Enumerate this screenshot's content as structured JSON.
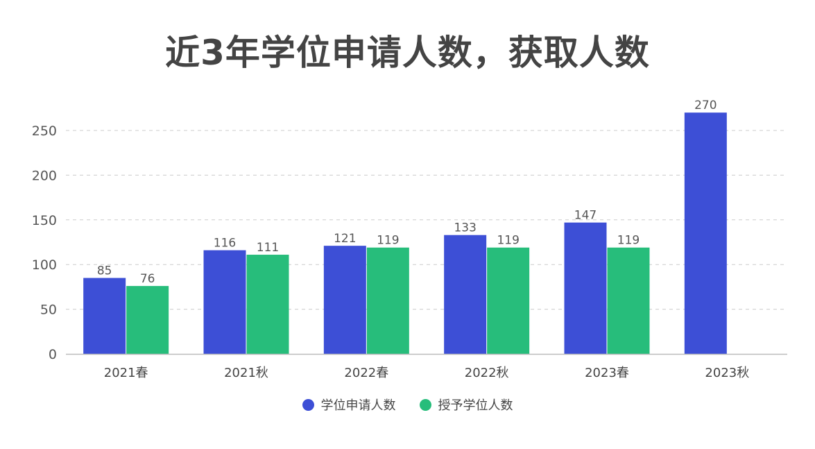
{
  "chart_data": {
    "type": "bar",
    "title": "近3年学位申请人数，获取人数",
    "xlabel": "",
    "ylabel": "",
    "categories": [
      "2021春",
      "2021秋",
      "2022春",
      "2022秋",
      "2023春",
      "2023秋"
    ],
    "yticks": [
      0,
      50,
      100,
      150,
      200,
      250
    ],
    "ylim": [
      0,
      250
    ],
    "grid": true,
    "legend_position": "bottom",
    "series": [
      {
        "name": "学位申请人数",
        "color": "#3d4fd6",
        "values": [
          85,
          116,
          121,
          133,
          147,
          270
        ]
      },
      {
        "name": "授予学位人数",
        "color": "#27bd7b",
        "values": [
          76,
          111,
          119,
          119,
          119,
          null
        ]
      }
    ]
  }
}
